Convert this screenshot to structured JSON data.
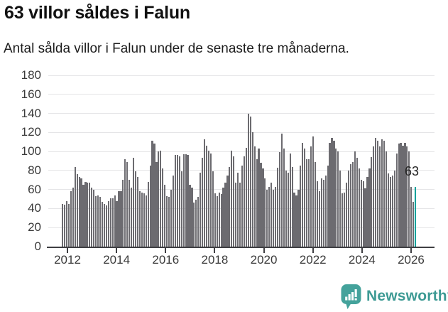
{
  "header": {
    "title": "63 villor såldes i Falun",
    "subtitle": "Antal sålda villor i Falun under de senaste tre månaderna."
  },
  "chart_data": {
    "type": "bar",
    "title": "63 villor såldes i Falun",
    "subtitle": "Antal sålda villor i Falun under de senaste tre månaderna.",
    "ylabel": "",
    "xlabel": "",
    "ylim": [
      0,
      180
    ],
    "y_ticks": [
      0,
      20,
      40,
      60,
      80,
      100,
      120,
      140,
      160,
      180
    ],
    "x_tick_years": [
      2012,
      2014,
      2016,
      2018,
      2020,
      2022,
      2024,
      2026
    ],
    "x_unit": "month",
    "x_start_year_approx": 2011.8,
    "x_end_year_approx": 2026.1,
    "grid": "horizontal",
    "legend": "none",
    "values": [
      45,
      44,
      48,
      45,
      58,
      62,
      84,
      76,
      73,
      72,
      65,
      68,
      67,
      67,
      62,
      60,
      53,
      54,
      52,
      47,
      45,
      43,
      48,
      51,
      51,
      54,
      48,
      58,
      58,
      70,
      92,
      89,
      70,
      62,
      93,
      79,
      73,
      58,
      57,
      56,
      54,
      68,
      85,
      111,
      108,
      89,
      100,
      101,
      82,
      65,
      53,
      52,
      60,
      75,
      96,
      96,
      95,
      79,
      97,
      97,
      96,
      65,
      62,
      46,
      49,
      52,
      78,
      93,
      113,
      106,
      101,
      98,
      79,
      56,
      53,
      57,
      55,
      62,
      67,
      75,
      84,
      101,
      95,
      67,
      78,
      67,
      85,
      95,
      104,
      140,
      137,
      120,
      105,
      92,
      103,
      88,
      82,
      72,
      60,
      63,
      67,
      60,
      63,
      83,
      99,
      119,
      103,
      80,
      78,
      98,
      84,
      57,
      54,
      60,
      85,
      109,
      103,
      92,
      92,
      105,
      116,
      89,
      69,
      58,
      72,
      70,
      75,
      85,
      109,
      114,
      111,
      103,
      100,
      80,
      56,
      57,
      67,
      80,
      87,
      89,
      100,
      93,
      82,
      70,
      69,
      61,
      73,
      82,
      94,
      105,
      114,
      111,
      105,
      113,
      111,
      100,
      77,
      73,
      75,
      80,
      98,
      108,
      109,
      106,
      109,
      105,
      100,
      63,
      47,
      63
    ],
    "highlight_last_bar": true,
    "highlight_value": 63,
    "highlight_label": "63"
  },
  "footer": {
    "brand": "Newsworthy",
    "logo_icon": "newsworthy-bar-chart-bubble-icon"
  },
  "colors": {
    "bar": "#6c6b70",
    "highlight": "#00a19b",
    "axis": "#3f3f43",
    "grid": "#e5e5e7",
    "tick_label": "#3a3a3a",
    "title": "#111111",
    "subtitle": "#1c1c1c",
    "annotation": "#222222",
    "brand_teal": "#3d9a94",
    "logo_fill": "#44a29b"
  }
}
